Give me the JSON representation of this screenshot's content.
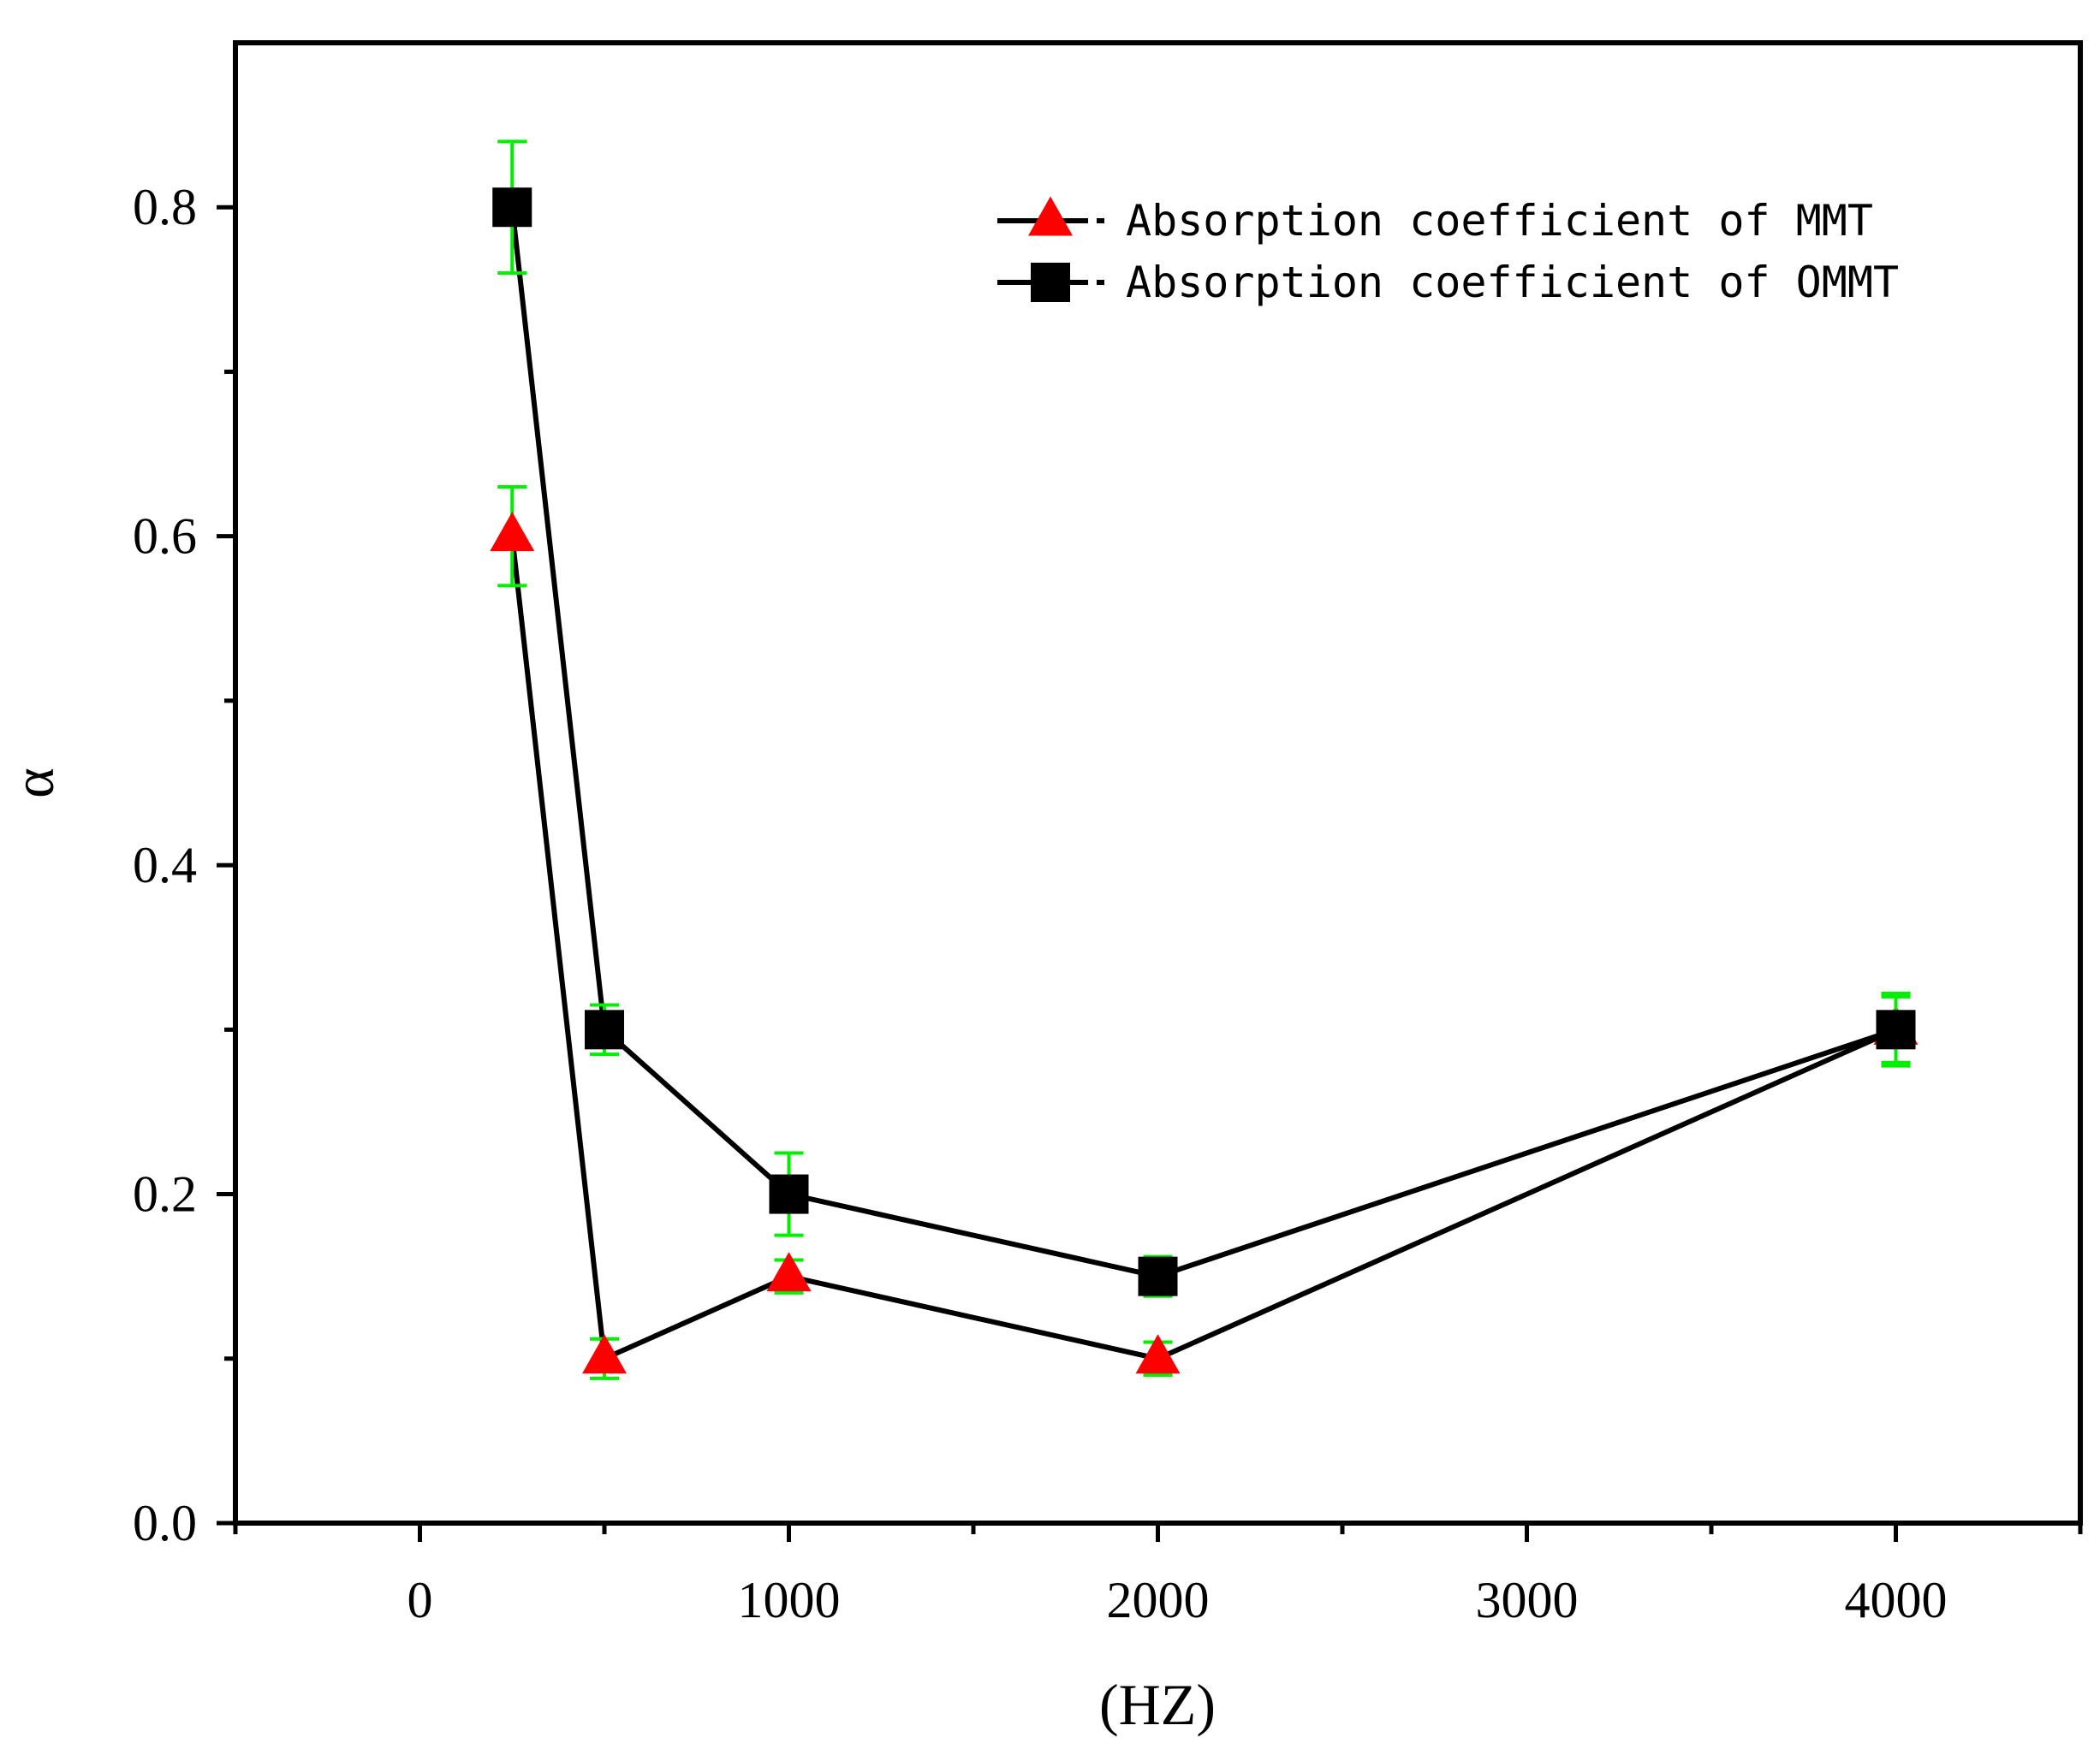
{
  "chart_data": {
    "type": "line",
    "title": "",
    "xlabel": "(HZ)",
    "ylabel": "α",
    "xlim": [
      -500,
      4500
    ],
    "ylim": [
      0,
      0.9
    ],
    "xticks": [
      {
        "value": 0,
        "label": "0"
      },
      {
        "value": 1000,
        "label": "1000"
      },
      {
        "value": 2000,
        "label": "2000"
      },
      {
        "value": 3000,
        "label": "3000"
      },
      {
        "value": 4000,
        "label": "4000"
      }
    ],
    "xminor": [
      -500,
      500,
      1500,
      2500,
      3500,
      4500
    ],
    "yticks": [
      {
        "value": 0.0,
        "label": "0.0"
      },
      {
        "value": 0.2,
        "label": "0.2"
      },
      {
        "value": 0.4,
        "label": "0.4"
      },
      {
        "value": 0.6,
        "label": "0.6"
      },
      {
        "value": 0.8,
        "label": "0.8"
      }
    ],
    "yminor": [
      0.1,
      0.3,
      0.5,
      0.7
    ],
    "grid": false,
    "legend_position": "top-right",
    "series": [
      {
        "name": "Absorption coefficient of MMT",
        "marker": "triangle",
        "color": "#ff0000",
        "line_color": "#000000",
        "error_color": "#00ee00",
        "x": [
          250,
          500,
          1000,
          2000,
          4000
        ],
        "y": [
          0.6,
          0.1,
          0.15,
          0.1,
          0.3
        ],
        "error": [
          0.03,
          0.012,
          0.01,
          0.01,
          0.02
        ]
      },
      {
        "name": "Absorption coefficient of OMMT",
        "marker": "square",
        "color": "#000000",
        "line_color": "#000000",
        "error_color": "#00ee00",
        "x": [
          250,
          500,
          1000,
          2000,
          4000
        ],
        "y": [
          0.8,
          0.3,
          0.2,
          0.15,
          0.3
        ],
        "error": [
          0.04,
          0.015,
          0.025,
          0.012,
          0.022
        ]
      }
    ]
  }
}
